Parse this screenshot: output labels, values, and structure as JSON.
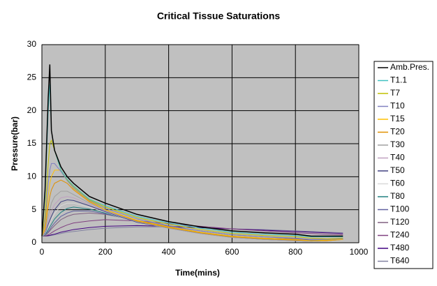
{
  "chart_data": {
    "type": "line",
    "title": "Critical Tissue Saturations",
    "x_label": "Time(mins)",
    "y_label": "Pressure(bar)",
    "x": [
      0,
      10,
      20,
      25,
      30,
      40,
      60,
      80,
      100,
      150,
      200,
      300,
      400,
      500,
      600,
      700,
      800,
      850,
      900,
      950
    ],
    "xlim": [
      0,
      1000
    ],
    "xticks": [
      0,
      200,
      400,
      600,
      800,
      1000
    ],
    "ylim": [
      0,
      30
    ],
    "yticks": [
      0,
      5,
      10,
      15,
      20,
      25,
      30
    ],
    "grid": true,
    "legend": "right",
    "background": "#c0c0c0",
    "series": [
      {
        "name": "Amb.Pres.",
        "color": "#000000",
        "values": [
          1,
          8,
          22,
          27,
          17,
          14,
          11.5,
          10,
          9,
          7,
          6,
          4.3,
          3.2,
          2.4,
          1.8,
          1.5,
          1.3,
          1,
          1,
          1
        ]
      },
      {
        "name": "T1.1",
        "color": "#40c0c0",
        "values": [
          1,
          7,
          20,
          24,
          17,
          14,
          11,
          9.6,
          8.6,
          6.6,
          5.6,
          4,
          3,
          2.2,
          1.6,
          1.3,
          1.1,
          0.9,
          0.9,
          0.9
        ]
      },
      {
        "name": "T7",
        "color": "#c0c000",
        "values": [
          1,
          4,
          12,
          15,
          15.5,
          14,
          11,
          9.5,
          8.5,
          6.5,
          5.4,
          3.8,
          2.8,
          2,
          1.4,
          1.1,
          0.9,
          0.7,
          0.6,
          0.7
        ]
      },
      {
        "name": "T10",
        "color": "#8080c0",
        "values": [
          1,
          3,
          9,
          11,
          12,
          12,
          10.8,
          9.4,
          8.3,
          6.4,
          5.2,
          3.6,
          2.6,
          1.8,
          1.2,
          0.9,
          0.7,
          0.5,
          0.5,
          0.6
        ]
      },
      {
        "name": "T15",
        "color": "#ffc000",
        "values": [
          1,
          2.5,
          7,
          9,
          10,
          11,
          11,
          9.5,
          8.2,
          6.3,
          5,
          3.4,
          2.4,
          1.6,
          1,
          0.7,
          0.5,
          0.3,
          0.4,
          0.5
        ]
      },
      {
        "name": "T20",
        "color": "#e09000",
        "values": [
          1,
          2,
          5.5,
          7,
          8,
          9,
          9.5,
          9,
          8,
          6.2,
          5,
          3.3,
          2.3,
          1.5,
          0.9,
          0.6,
          0.4,
          0.3,
          0.3,
          0.5
        ]
      },
      {
        "name": "T30",
        "color": "#a0a0a0",
        "values": [
          1,
          1.6,
          4,
          5,
          6,
          7,
          7.8,
          7.8,
          7.3,
          6,
          4.9,
          3.2,
          2.2,
          1.4,
          0.8,
          0.5,
          0.3,
          0.2,
          0.3,
          0.5
        ]
      },
      {
        "name": "T40",
        "color": "#c0a0c0",
        "values": [
          1,
          1.5,
          3.2,
          4,
          4.8,
          5.8,
          6.8,
          7,
          6.8,
          5.8,
          4.8,
          3.2,
          2.2,
          1.4,
          0.8,
          0.5,
          0.3,
          0.2,
          0.3,
          0.5
        ]
      },
      {
        "name": "T50",
        "color": "#404080",
        "values": [
          1,
          1.4,
          2.8,
          3.4,
          4,
          5,
          6.2,
          6.5,
          6.4,
          5.6,
          4.7,
          3.1,
          2.2,
          1.4,
          0.8,
          0.5,
          0.3,
          0.2,
          0.3,
          0.5
        ]
      },
      {
        "name": "T60",
        "color": "#d8d8d8",
        "values": [
          1,
          1.3,
          2.4,
          3,
          3.5,
          4.4,
          5.6,
          6,
          6,
          5.4,
          4.6,
          3.1,
          2.2,
          1.4,
          0.8,
          0.5,
          0.3,
          0.2,
          0.3,
          0.5
        ]
      },
      {
        "name": "T80",
        "color": "#208080",
        "values": [
          1,
          1.2,
          2,
          2.4,
          2.8,
          3.6,
          4.6,
          5.2,
          5.4,
          5.1,
          4.5,
          3.2,
          2.3,
          1.5,
          0.9,
          0.6,
          0.4,
          0.3,
          0.4,
          0.6
        ]
      },
      {
        "name": "T100",
        "color": "#6060a0",
        "values": [
          1,
          1.2,
          1.7,
          2,
          2.4,
          3,
          4,
          4.5,
          4.8,
          4.8,
          4.4,
          3.3,
          2.4,
          1.6,
          1,
          0.7,
          0.5,
          0.4,
          0.4,
          0.6
        ]
      },
      {
        "name": "T120",
        "color": "#806080",
        "values": [
          1,
          1.1,
          1.5,
          1.8,
          2.1,
          2.6,
          3.5,
          4,
          4.3,
          4.5,
          4.3,
          3.4,
          2.5,
          1.8,
          1.2,
          0.9,
          0.6,
          0.5,
          0.5,
          0.6
        ]
      },
      {
        "name": "T240",
        "color": "#804080",
        "values": [
          1,
          1,
          1.2,
          1.3,
          1.5,
          1.8,
          2.3,
          2.7,
          3,
          3.3,
          3.5,
          3.3,
          2.9,
          2.5,
          2.1,
          1.8,
          1.5,
          1.4,
          1.3,
          1.2
        ]
      },
      {
        "name": "T480",
        "color": "#400080",
        "values": [
          1,
          1,
          1.1,
          1.1,
          1.2,
          1.3,
          1.6,
          1.8,
          2,
          2.3,
          2.5,
          2.6,
          2.5,
          2.3,
          2.1,
          1.9,
          1.7,
          1.6,
          1.5,
          1.4
        ]
      },
      {
        "name": "T640",
        "color": "#8080a0",
        "values": [
          1,
          1,
          1,
          1.1,
          1.1,
          1.2,
          1.4,
          1.6,
          1.7,
          2,
          2.2,
          2.4,
          2.4,
          2.3,
          2.1,
          2,
          1.8,
          1.7,
          1.6,
          1.5
        ]
      }
    ]
  }
}
